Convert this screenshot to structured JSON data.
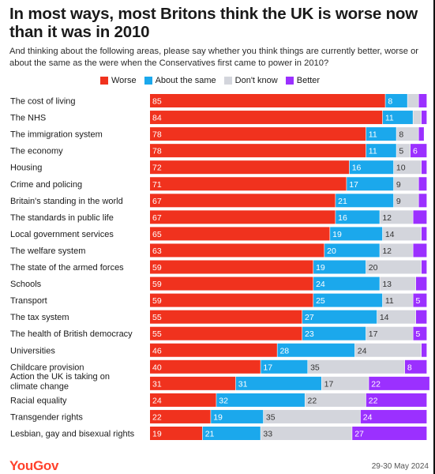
{
  "header": {
    "title": "In most ways, most Britons think the UK is worse now than it was in 2010",
    "subtitle": "And thinking about the following areas, please say whether you think things are currently better, worse or about the same as the were when the Conservatives first came to power in 2010?"
  },
  "footer": {
    "brand": "YouGov",
    "date": "29-30 May 2024"
  },
  "legend": [
    {
      "name": "Worse",
      "color": "#f0321e"
    },
    {
      "name": "About the same",
      "color": "#1ba8ec"
    },
    {
      "name": "Don't know",
      "color": "#d3d5dc"
    },
    {
      "name": "Better",
      "color": "#9b30ff"
    }
  ],
  "chart_data": {
    "type": "bar",
    "orientation": "horizontal",
    "stacked": true,
    "title": "In most ways, most Britons think the UK is worse now than it was in 2010",
    "xlim": [
      0,
      100
    ],
    "grid": false,
    "legend_position": "top",
    "categories": [
      "The cost of living",
      "The NHS",
      "The immigration system",
      "The economy",
      "Housing",
      "Crime and policing",
      "Britain's standing in the world",
      "The standards in public life",
      "Local government services",
      "The welfare system",
      "The state of the armed forces",
      "Schools",
      "Transport",
      "The tax system",
      "The health of British democracy",
      "Universities",
      "Childcare provision",
      "Action the UK is taking on climate change",
      "Racial equality",
      "Transgender rights",
      "Lesbian, gay and bisexual rights"
    ],
    "series": [
      {
        "name": "Worse",
        "color": "#f0321e",
        "values": [
          85,
          84,
          78,
          78,
          72,
          71,
          67,
          67,
          65,
          63,
          59,
          59,
          59,
          55,
          55,
          46,
          40,
          31,
          24,
          22,
          19
        ]
      },
      {
        "name": "About the same",
        "color": "#1ba8ec",
        "values": [
          8,
          11,
          11,
          11,
          16,
          17,
          21,
          16,
          19,
          20,
          19,
          24,
          25,
          27,
          23,
          28,
          17,
          31,
          32,
          19,
          21
        ]
      },
      {
        "name": "Don't know",
        "color": "#d3d5dc",
        "values": [
          4,
          3,
          8,
          5,
          10,
          9,
          9,
          12,
          14,
          12,
          20,
          13,
          11,
          14,
          17,
          24,
          35,
          17,
          22,
          35,
          33
        ]
      },
      {
        "name": "Better",
        "color": "#9b30ff",
        "values": [
          3,
          2,
          2,
          6,
          2,
          3,
          3,
          5,
          2,
          5,
          2,
          4,
          5,
          4,
          5,
          2,
          8,
          22,
          22,
          24,
          27
        ]
      }
    ],
    "labels_hidden": [
      [
        false,
        false,
        true,
        true
      ],
      [
        false,
        false,
        true,
        true
      ],
      [
        false,
        false,
        false,
        true
      ],
      [
        false,
        false,
        false,
        false
      ],
      [
        false,
        false,
        false,
        true
      ],
      [
        false,
        false,
        false,
        true
      ],
      [
        false,
        false,
        false,
        true
      ],
      [
        false,
        false,
        false,
        true
      ],
      [
        false,
        false,
        false,
        true
      ],
      [
        false,
        false,
        false,
        true
      ],
      [
        false,
        false,
        false,
        true
      ],
      [
        false,
        false,
        false,
        true
      ],
      [
        false,
        false,
        false,
        false
      ],
      [
        false,
        false,
        false,
        true
      ],
      [
        false,
        false,
        false,
        false
      ],
      [
        false,
        false,
        false,
        true
      ],
      [
        false,
        false,
        false,
        false
      ],
      [
        false,
        false,
        false,
        false
      ],
      [
        false,
        false,
        false,
        false
      ],
      [
        false,
        false,
        false,
        false
      ],
      [
        false,
        false,
        false,
        false
      ]
    ]
  }
}
